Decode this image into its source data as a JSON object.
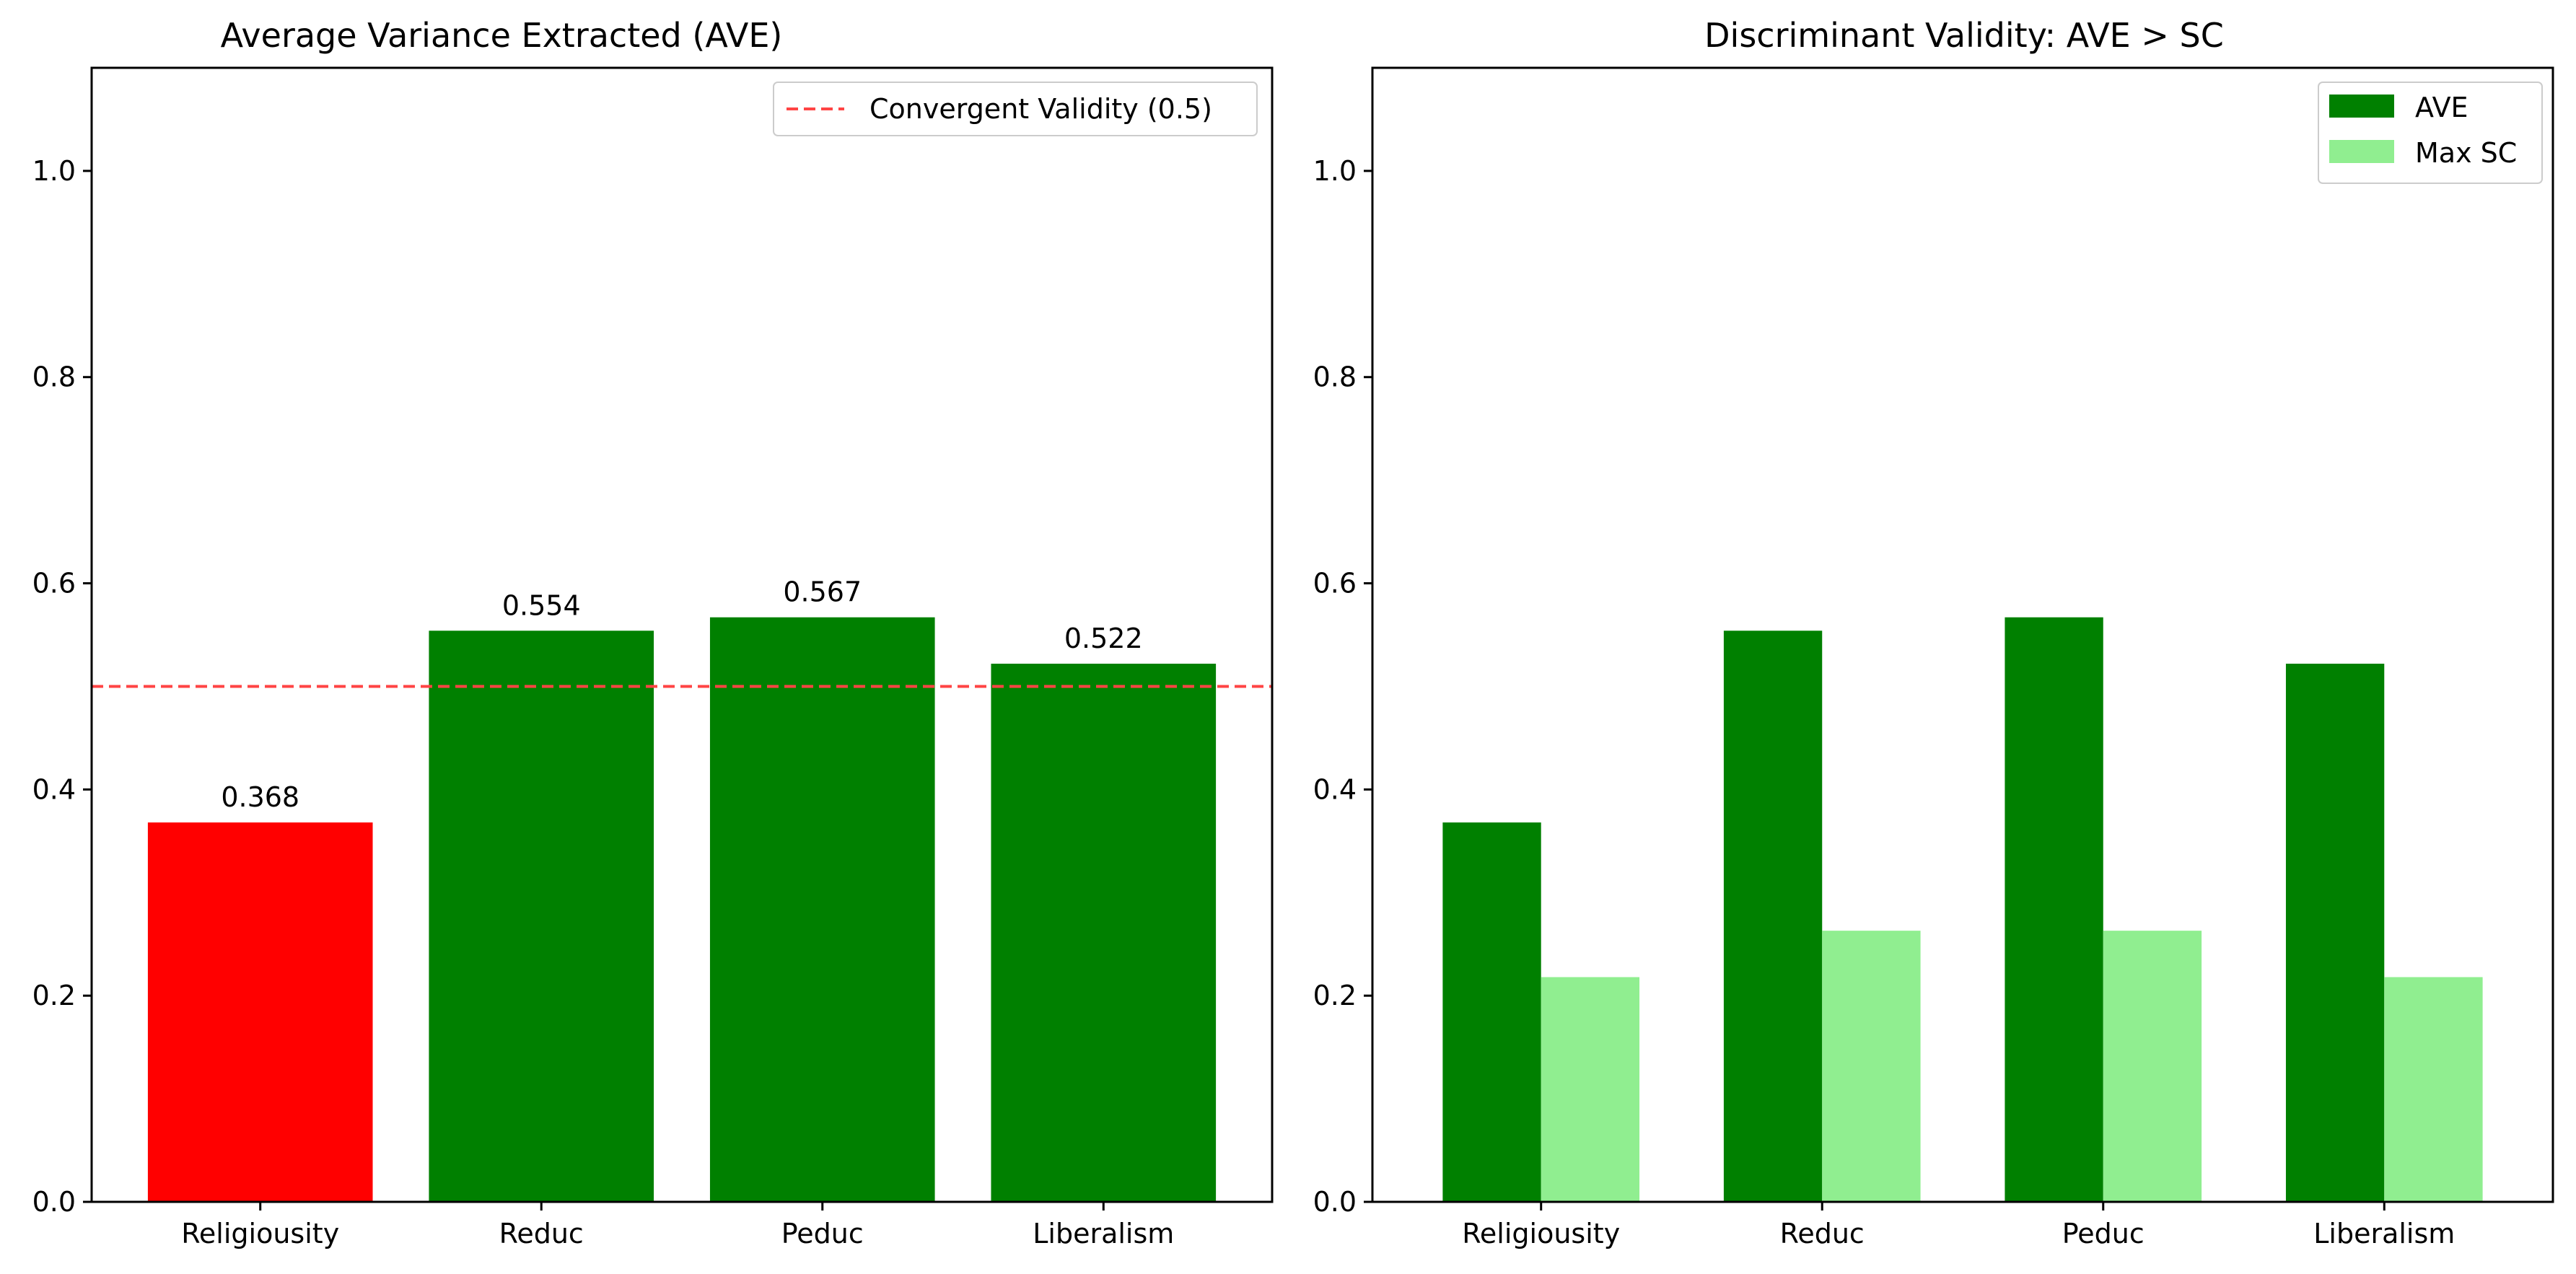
{
  "colors": {
    "fail": "#ff0000",
    "pass": "#008000",
    "max_sc": "#90ee90",
    "threshold": "#ff4444"
  },
  "chart_data": [
    {
      "type": "bar",
      "title": "Average Variance Extracted (AVE)",
      "categories": [
        "Religiousity",
        "Reduc",
        "Peduc",
        "Liberalism"
      ],
      "values": [
        0.368,
        0.554,
        0.567,
        0.522
      ],
      "value_labels": [
        "0.368",
        "0.554",
        "0.567",
        "0.522"
      ],
      "bar_colors": [
        "#ff0000",
        "#008000",
        "#008000",
        "#008000"
      ],
      "ylim": [
        0,
        1.1
      ],
      "yticks": [
        0.0,
        0.2,
        0.4,
        0.6,
        0.8,
        1.0
      ],
      "ytick_labels": [
        "0.0",
        "0.2",
        "0.4",
        "0.6",
        "0.8",
        "1.0"
      ],
      "threshold": {
        "value": 0.5,
        "label": "Convergent Validity (0.5)",
        "style": "dashed"
      },
      "legend": {
        "placement": "upper right",
        "entries": [
          "Convergent Validity (0.5)"
        ]
      },
      "grid": false
    },
    {
      "type": "bar",
      "title": "Discriminant Validity: AVE > SC",
      "categories": [
        "Religiousity",
        "Reduc",
        "Peduc",
        "Liberalism"
      ],
      "series": [
        {
          "name": "AVE",
          "values": [
            0.368,
            0.554,
            0.567,
            0.522
          ],
          "color": "#008000"
        },
        {
          "name": "Max SC",
          "values": [
            0.218,
            0.263,
            0.263,
            0.218
          ],
          "color": "#90ee90"
        }
      ],
      "ylim": [
        0,
        1.1
      ],
      "yticks": [
        0.0,
        0.2,
        0.4,
        0.6,
        0.8,
        1.0
      ],
      "ytick_labels": [
        "0.0",
        "0.2",
        "0.4",
        "0.6",
        "0.8",
        "1.0"
      ],
      "legend": {
        "placement": "upper right",
        "entries": [
          "AVE",
          "Max SC"
        ]
      },
      "grid": false
    }
  ]
}
